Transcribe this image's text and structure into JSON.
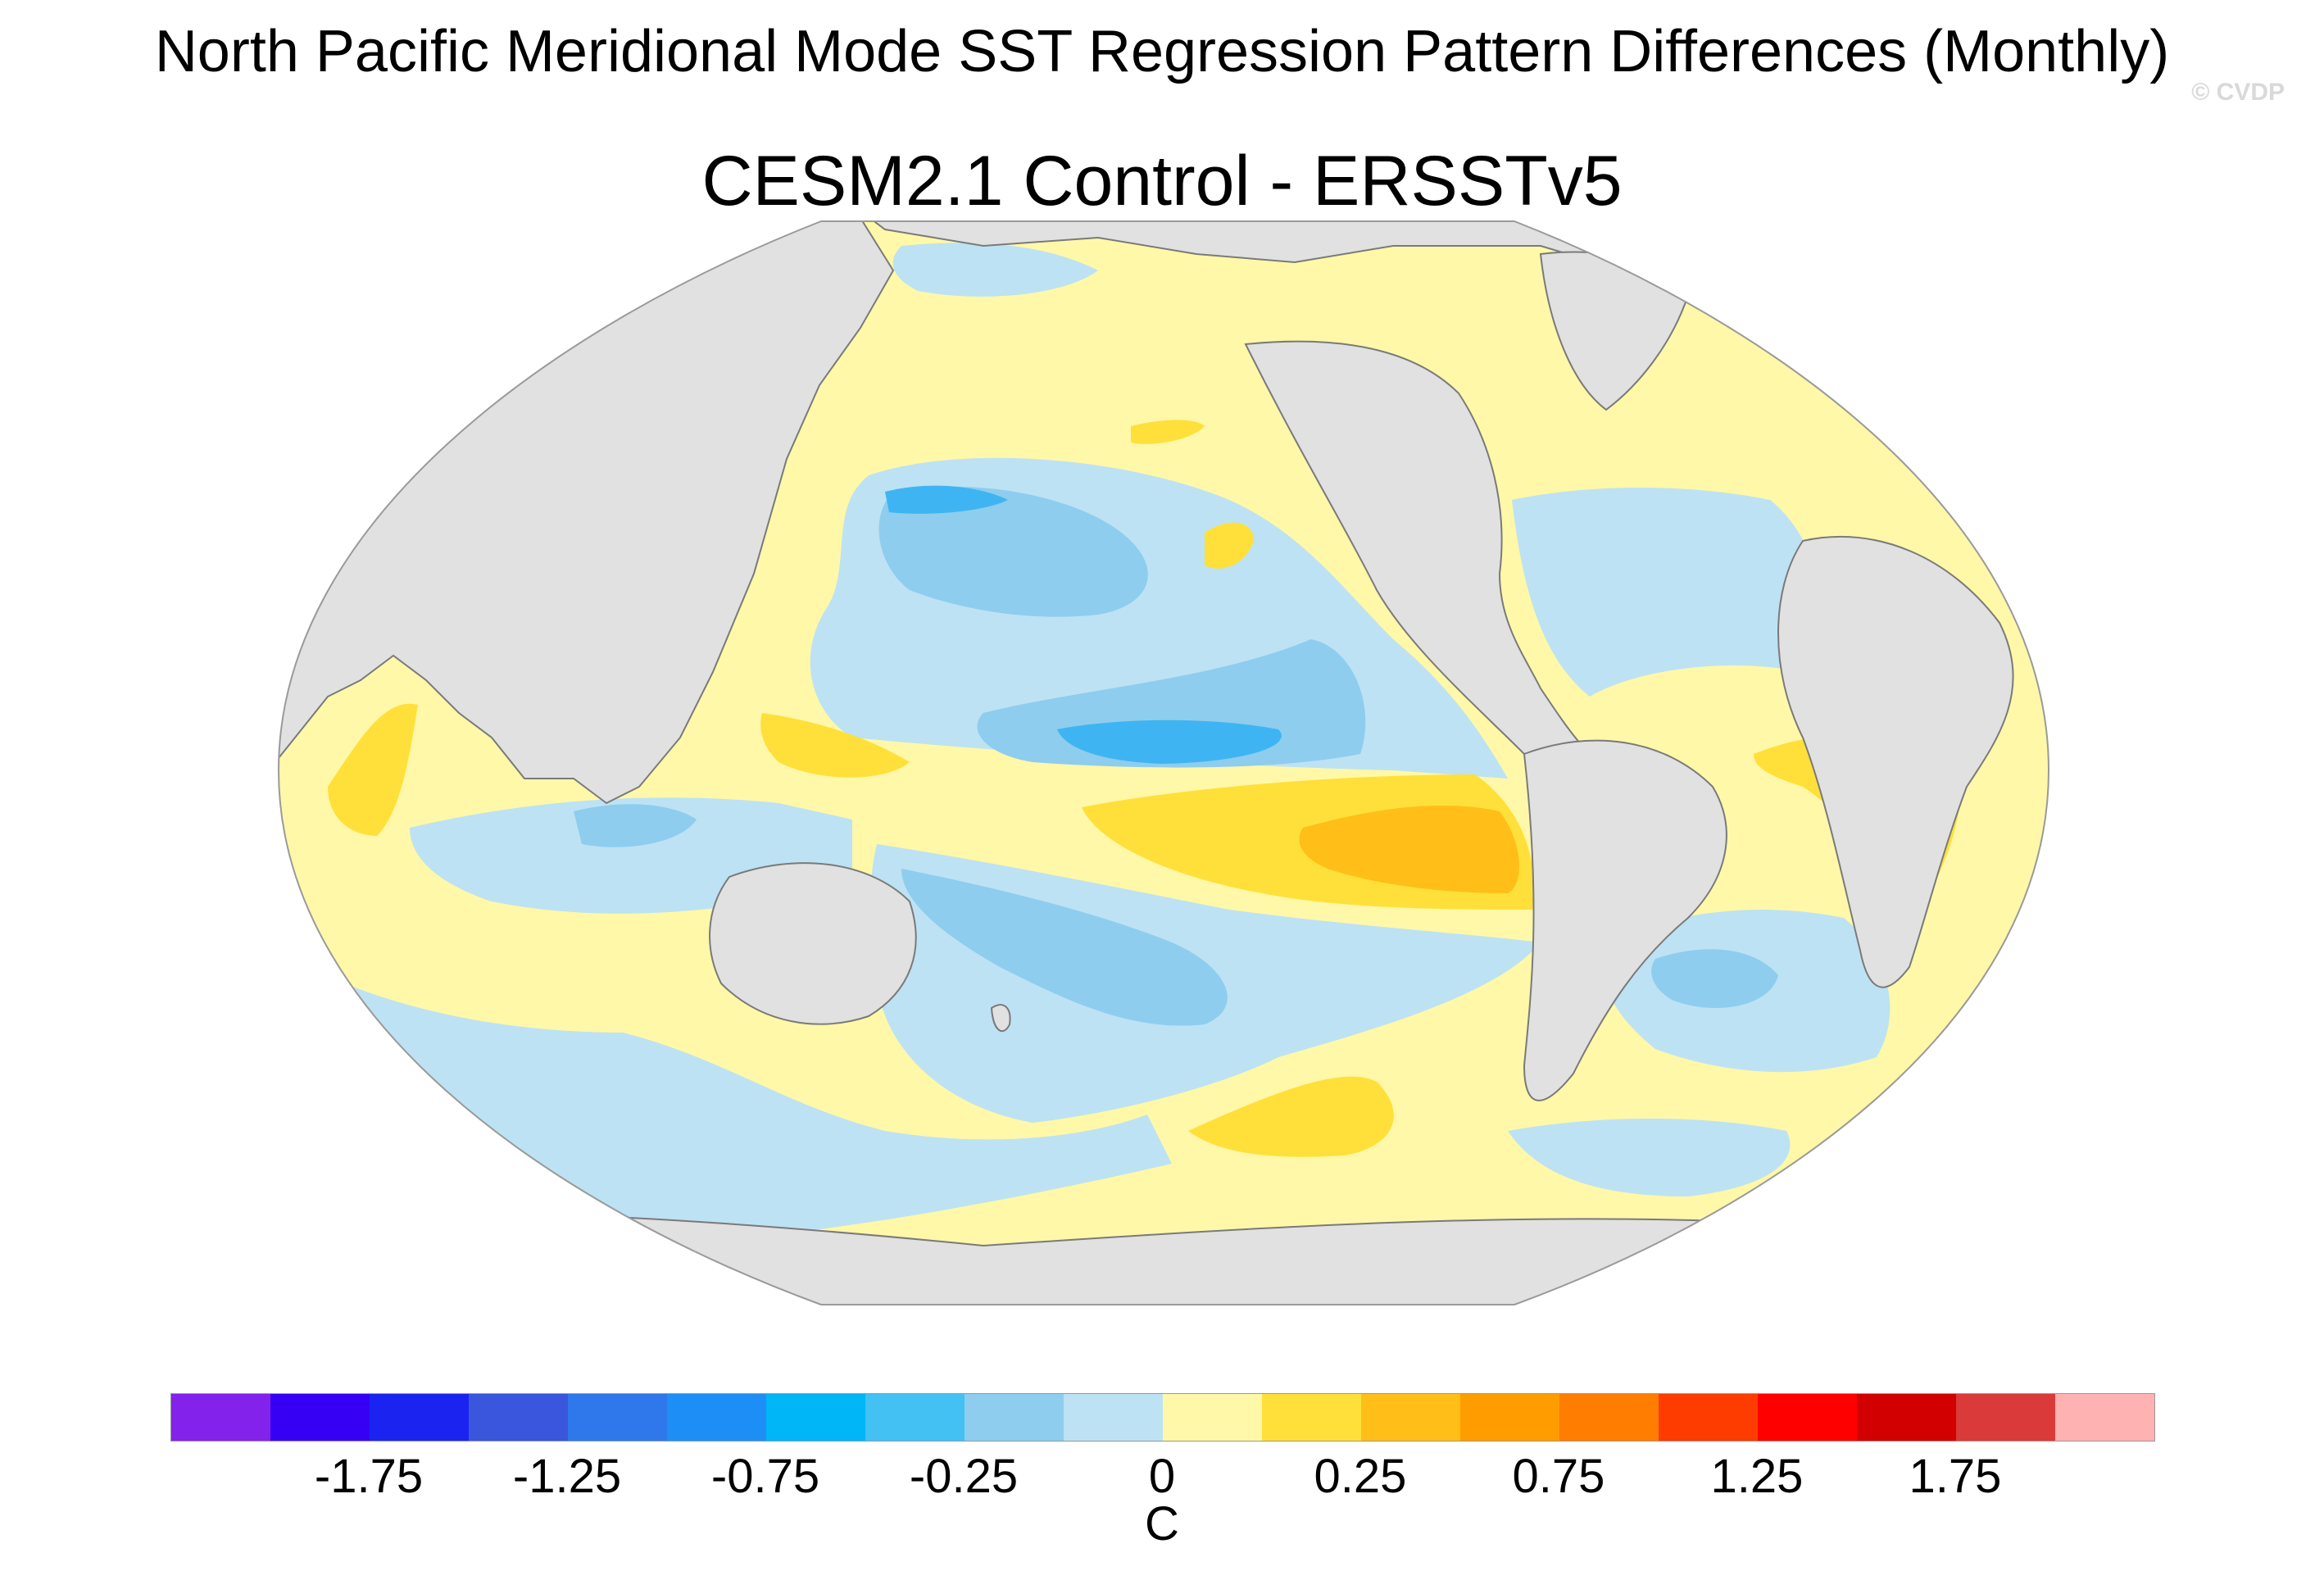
{
  "header": {
    "title": "North Pacific Meridional Mode SST Regression Pattern Differences (Monthly)",
    "subtitle": "CESM2.1 Control - ERSSTv5",
    "watermark": "© CVDP"
  },
  "colors": {
    "land": "#e1e1e1",
    "coast": "#7a7a7a",
    "neg_0": "#bde2f4",
    "neg_1": "#8ecdee",
    "neg_2": "#3fb4f2",
    "pos_0": "#fff8a8",
    "pos_1": "#ffe03a",
    "pos_2": "#ffbe18"
  },
  "colorbar": {
    "units": "C",
    "colors": [
      "#8222ea",
      "#3600f5",
      "#1b23f0",
      "#3a56dc",
      "#2f78ec",
      "#1d8ef5",
      "#00b6f7",
      "#42c1f2",
      "#8ecdee",
      "#bde2f4",
      "#fff8a8",
      "#ffe03a",
      "#ffbe18",
      "#ff9d00",
      "#ff7d00",
      "#ff3c00",
      "#ff0000",
      "#d20000",
      "#da3a3a",
      "#ffb2b2"
    ],
    "tick_labels": [
      "-1.75",
      "-1.25",
      "-0.75",
      "-0.25",
      "0",
      "0.25",
      "0.75",
      "1.25",
      "1.75"
    ]
  }
}
